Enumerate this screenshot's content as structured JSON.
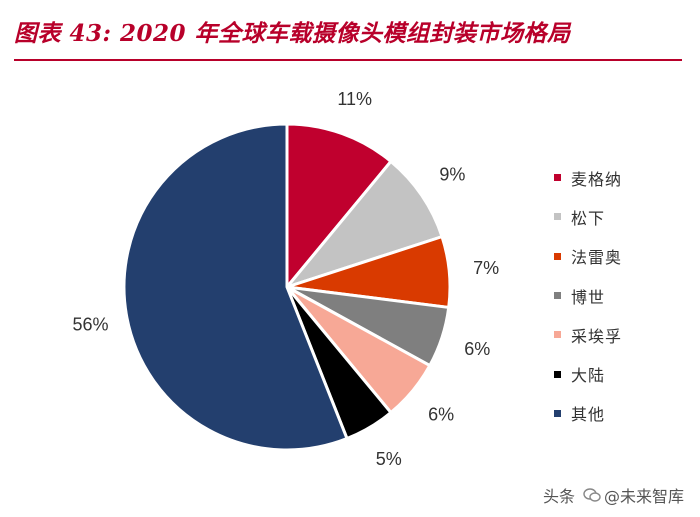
{
  "colors": {
    "title": "#b8002a"
  },
  "chart_data": {
    "type": "pie",
    "title": "图表 43: 2020 年全球车载摄像头模组封装市场格局",
    "categories": [
      "麦格纳",
      "松下",
      "法雷奥",
      "博世",
      "采埃孚",
      "大陆",
      "其他"
    ],
    "values": [
      11,
      9,
      7,
      6,
      6,
      5,
      56
    ],
    "data_labels": [
      "11%",
      "9%",
      "7%",
      "6%",
      "6%",
      "5%",
      "56%"
    ],
    "colors": [
      "#c0002e",
      "#c3c3c3",
      "#d93a00",
      "#7f7f7f",
      "#f7a896",
      "#000000",
      "#233f6e"
    ],
    "start_angle": "12 o'clock",
    "direction": "clockwise",
    "legend_position": "right"
  },
  "watermark": {
    "prefix": "头条",
    "handle": "@未来智库",
    "overlay": "未来智库",
    "icon": "wechat-bubble-icon"
  }
}
